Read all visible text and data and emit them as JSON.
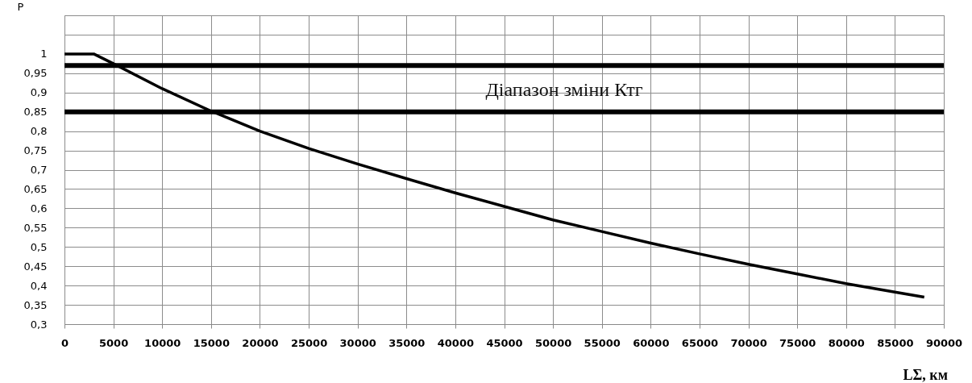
{
  "chart_data": {
    "type": "line",
    "xlabel": "LΣ, км",
    "ylabel": "P",
    "x": [
      0,
      3000,
      5000,
      10000,
      15000,
      20000,
      25000,
      30000,
      35000,
      40000,
      45000,
      50000,
      55000,
      60000,
      65000,
      70000,
      75000,
      80000,
      85000,
      88000
    ],
    "series": [
      {
        "color": "#000000",
        "values": [
          1,
          1,
          0.975,
          0.91,
          0.852,
          0.8,
          0.755,
          0.715,
          0.677,
          0.64,
          0.605,
          0.57,
          0.54,
          0.51,
          0.482,
          0.455,
          0.43,
          0.405,
          0.383,
          0.37
        ]
      }
    ],
    "xlim": [
      0,
      90000
    ],
    "ylim": [
      0.3,
      1.1
    ],
    "xticks": [
      0,
      5000,
      10000,
      15000,
      20000,
      25000,
      30000,
      35000,
      40000,
      45000,
      50000,
      55000,
      60000,
      65000,
      70000,
      75000,
      80000,
      85000,
      90000
    ],
    "yticks": [
      {
        "value": 0.3,
        "label": "0,3"
      },
      {
        "value": 0.35,
        "label": "0,35"
      },
      {
        "value": 0.4,
        "label": "0,4"
      },
      {
        "value": 0.45,
        "label": "0,45"
      },
      {
        "value": 0.5,
        "label": "0,5"
      },
      {
        "value": 0.55,
        "label": "0,55"
      },
      {
        "value": 0.6,
        "label": "0,6"
      },
      {
        "value": 0.65,
        "label": "0,65"
      },
      {
        "value": 0.7,
        "label": "0,7"
      },
      {
        "value": 0.75,
        "label": "0,75"
      },
      {
        "value": 0.8,
        "label": "0,8"
      },
      {
        "value": 0.85,
        "label": "0,85"
      },
      {
        "value": 0.9,
        "label": "0,9"
      },
      {
        "value": 0.95,
        "label": "0,95"
      },
      1,
      {
        "value": 1.05,
        "label": null
      },
      {
        "value": 1.1,
        "label": null
      }
    ],
    "ref_lines": [
      {
        "axis": "y",
        "value": 0.97,
        "color": "#000000"
      },
      {
        "axis": "y",
        "value": 0.85,
        "color": "#000000"
      }
    ],
    "annotations": [
      "Діапазон зміни Ктг"
    ],
    "grid": true
  }
}
